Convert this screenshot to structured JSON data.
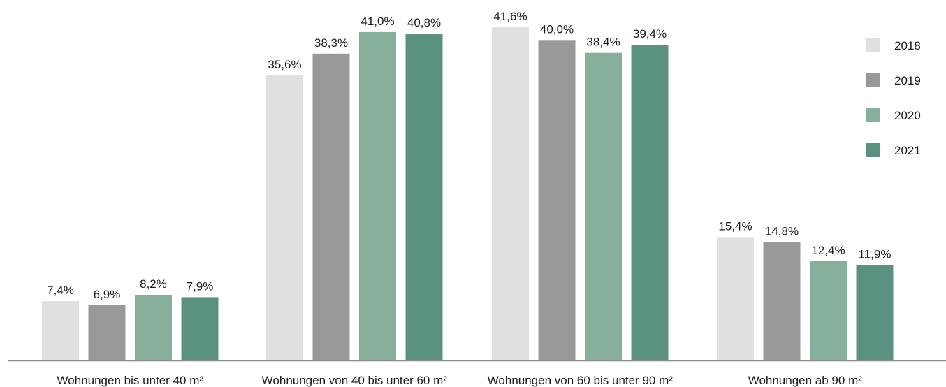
{
  "chart_data": {
    "type": "bar",
    "categories": [
      "Wohnungen bis unter 40 m²",
      "Wohnungen von 40 bis unter 60 m²",
      "Wohnungen von 60 bis unter 90 m²",
      "Wohnungen ab 90 m²"
    ],
    "series": [
      {
        "name": "2018",
        "color": "#dfe0df",
        "values": [
          7.4,
          35.6,
          41.6,
          15.4
        ],
        "labels": [
          "7,4%",
          "35,6%",
          "41,6%",
          "15,4%"
        ]
      },
      {
        "name": "2019",
        "color": "#999a97",
        "values": [
          6.9,
          38.3,
          40.0,
          14.8
        ],
        "labels": [
          "6,9%",
          "38,3%",
          "40,0%",
          "14,8%"
        ]
      },
      {
        "name": "2020",
        "color": "#86b09b",
        "values": [
          8.2,
          41.0,
          38.4,
          12.4
        ],
        "labels": [
          "8,2%",
          "41,0%",
          "38,4%",
          "12,4%"
        ]
      },
      {
        "name": "2021",
        "color": "#5a9180",
        "values": [
          7.9,
          40.8,
          39.4,
          11.9
        ],
        "labels": [
          "7,9%",
          "40,8%",
          "39,4%",
          "11,9%"
        ]
      }
    ],
    "ylim": [
      0,
      42
    ],
    "grid": false,
    "legend_position": "top-right",
    "axis_color": "#8c8c8c"
  }
}
